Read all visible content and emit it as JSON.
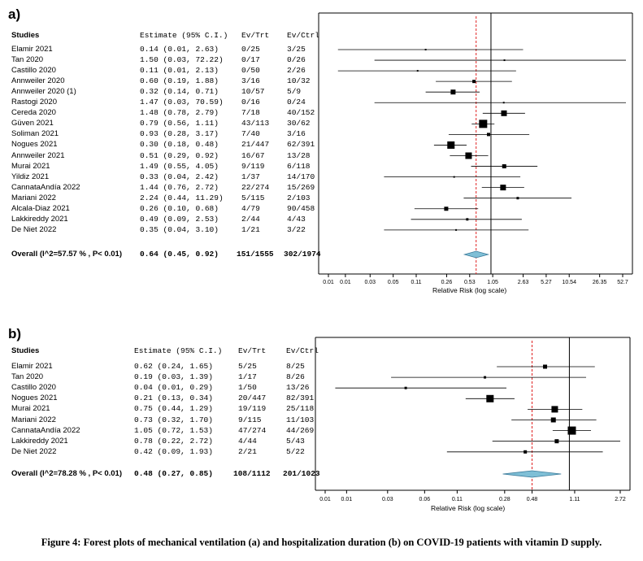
{
  "caption": "Figure 4: Forest plots of mechanical ventilation (a) and hospitalization duration (b) on COVID-19 patients with vitamin D supply.",
  "chart_data": [
    {
      "type": "forest",
      "panel_label": "a)",
      "headers": {
        "studies": "Studies",
        "estimate": "Estimate (95% C.I.)",
        "ev_trt": "Ev/Trt",
        "ev_ctrl": "Ev/Ctrl"
      },
      "xlabel": "Relative Risk (log scale)",
      "xlim": [
        0.01,
        52.7
      ],
      "ticks": [
        "0.01",
        "0.01",
        "0.03",
        "0.05",
        "0.11",
        "0.26",
        "0.53",
        "1.05",
        "2.63",
        "5.27",
        "10.54",
        "26.35",
        "52.7"
      ],
      "tick_values": [
        0.0075,
        0.0125,
        0.0263,
        0.0527,
        0.1054,
        0.2635,
        0.527,
        1.054,
        2.635,
        5.27,
        10.54,
        26.35,
        52.7
      ],
      "reference_line": 1,
      "overall_line": 0.64,
      "studies": [
        {
          "name": "Elamir 2021",
          "est": "0.14",
          "lo": "0.01",
          "hi": "2.63",
          "ev_trt": "0/25",
          "ev_ctrl": "3/25",
          "rr": 0.14,
          "l": 0.01,
          "u": 2.63,
          "w": 2
        },
        {
          "name": "Tan 2020",
          "est": "1.50",
          "lo": "0.03",
          "hi": "72.22",
          "ev_trt": "0/17",
          "ev_ctrl": "0/26",
          "rr": 1.5,
          "l": 0.03,
          "u": 72.22,
          "w": 2
        },
        {
          "name": "Castillo 2020",
          "est": "0.11",
          "lo": "0.01",
          "hi": "2.13",
          "ev_trt": "0/50",
          "ev_ctrl": "2/26",
          "rr": 0.11,
          "l": 0.01,
          "u": 2.13,
          "w": 2
        },
        {
          "name": "Annweiler 2020",
          "est": "0.60",
          "lo": "0.19",
          "hi": "1.88",
          "ev_trt": "3/16",
          "ev_ctrl": "10/32",
          "rr": 0.6,
          "l": 0.19,
          "u": 1.88,
          "w": 4
        },
        {
          "name": "Annweiler 2020 (1)",
          "est": "0.32",
          "lo": "0.14",
          "hi": "0.71",
          "ev_trt": "10/57",
          "ev_ctrl": "5/9",
          "rr": 0.32,
          "l": 0.14,
          "u": 0.71,
          "w": 6
        },
        {
          "name": "Rastogi 2020",
          "est": "1.47",
          "lo": "0.03",
          "hi": "70.59",
          "ev_trt": "0/16",
          "ev_ctrl": "0/24",
          "rr": 1.47,
          "l": 0.03,
          "u": 70.59,
          "w": 2
        },
        {
          "name": "Cereda 2020",
          "est": "1.48",
          "lo": "0.78",
          "hi": "2.79",
          "ev_trt": "7/18",
          "ev_ctrl": "40/152",
          "rr": 1.48,
          "l": 0.78,
          "u": 2.79,
          "w": 7
        },
        {
          "name": "Güven 2021",
          "est": "0.79",
          "lo": "0.56",
          "hi": "1.11",
          "ev_trt": "43/113",
          "ev_ctrl": "30/62",
          "rr": 0.79,
          "l": 0.56,
          "u": 1.11,
          "w": 10
        },
        {
          "name": "Soliman 2021",
          "est": "0.93",
          "lo": "0.28",
          "hi": "3.17",
          "ev_trt": "7/40",
          "ev_ctrl": "3/16",
          "rr": 0.93,
          "l": 0.28,
          "u": 3.17,
          "w": 4
        },
        {
          "name": "Nogues 2021",
          "est": "0.30",
          "lo": "0.18",
          "hi": "0.48",
          "ev_trt": "21/447",
          "ev_ctrl": "62/391",
          "rr": 0.3,
          "l": 0.18,
          "u": 0.48,
          "w": 9
        },
        {
          "name": "Annweiler 2021",
          "est": "0.51",
          "lo": "0.29",
          "hi": "0.92",
          "ev_trt": "16/67",
          "ev_ctrl": "13/28",
          "rr": 0.51,
          "l": 0.29,
          "u": 0.92,
          "w": 8
        },
        {
          "name": "Murai 2021",
          "est": "1.49",
          "lo": "0.55",
          "hi": "4.05",
          "ev_trt": "9/119",
          "ev_ctrl": "6/118",
          "rr": 1.49,
          "l": 0.55,
          "u": 4.05,
          "w": 5
        },
        {
          "name": "Yildiz 2021",
          "est": "0.33",
          "lo": "0.04",
          "hi": "2.42",
          "ev_trt": "1/37",
          "ev_ctrl": "14/170",
          "rr": 0.33,
          "l": 0.04,
          "u": 2.42,
          "w": 2
        },
        {
          "name": "CannataAndía 2022",
          "est": "1.44",
          "lo": "0.76",
          "hi": "2.72",
          "ev_trt": "22/274",
          "ev_ctrl": "15/269",
          "rr": 1.44,
          "l": 0.76,
          "u": 2.72,
          "w": 7
        },
        {
          "name": "Mariani 2022",
          "est": "2.24",
          "lo": "0.44",
          "hi": "11.29",
          "ev_trt": "5/115",
          "ev_ctrl": "2/103",
          "rr": 2.24,
          "l": 0.44,
          "u": 11.29,
          "w": 3
        },
        {
          "name": "Alcala-Diaz 2021",
          "est": "0.26",
          "lo": "0.10",
          "hi": "0.68",
          "ev_trt": "4/79",
          "ev_ctrl": "90/458",
          "rr": 0.26,
          "l": 0.1,
          "u": 0.68,
          "w": 5
        },
        {
          "name": "Lakkireddy 2021",
          "est": "0.49",
          "lo": "0.09",
          "hi": "2.53",
          "ev_trt": "2/44",
          "ev_ctrl": "4/43",
          "rr": 0.49,
          "l": 0.09,
          "u": 2.53,
          "w": 3
        },
        {
          "name": "De Niet 2022",
          "est": "0.35",
          "lo": "0.04",
          "hi": "3.10",
          "ev_trt": "1/21",
          "ev_ctrl": "3/22",
          "rr": 0.35,
          "l": 0.04,
          "u": 3.1,
          "w": 2
        }
      ],
      "overall": {
        "name": "Overall (I^2=57.57 % , P< 0.01)",
        "est": "0.64",
        "lo": "0.45",
        "hi": "0.92",
        "ev_trt": "151/1555",
        "ev_ctrl": "302/1974",
        "rr": 0.64,
        "l": 0.45,
        "u": 0.92
      }
    },
    {
      "type": "forest",
      "panel_label": "b)",
      "headers": {
        "studies": "Studies",
        "estimate": "Estimate (95% C.I.)",
        "ev_trt": "Ev/Trt",
        "ev_ctrl": "Ev/Ctrl"
      },
      "xlabel": "Relative Risk (log scale)",
      "xlim": [
        0.01,
        2.72
      ],
      "ticks": [
        "0.01",
        "0.01",
        "0.03",
        "0.06",
        "0.11",
        "0.28",
        "0.48",
        "1.11",
        "2.72"
      ],
      "tick_values": [
        0.0082,
        0.0125,
        0.028,
        0.058,
        0.11,
        0.28,
        0.48,
        1.11,
        2.72
      ],
      "reference_line": 1,
      "overall_line": 0.48,
      "studies": [
        {
          "name": "Elamir 2021",
          "est": "0.62",
          "lo": "0.24",
          "hi": "1.65",
          "ev_trt": "5/25",
          "ev_ctrl": "8/25",
          "rr": 0.62,
          "l": 0.24,
          "u": 1.65,
          "w": 5
        },
        {
          "name": "Tan 2020",
          "est": "0.19",
          "lo": "0.03",
          "hi": "1.39",
          "ev_trt": "1/17",
          "ev_ctrl": "8/26",
          "rr": 0.19,
          "l": 0.03,
          "u": 1.39,
          "w": 3
        },
        {
          "name": "Castillo 2020",
          "est": "0.04",
          "lo": "0.01",
          "hi": "0.29",
          "ev_trt": "1/50",
          "ev_ctrl": "13/26",
          "rr": 0.04,
          "l": 0.01,
          "u": 0.29,
          "w": 3
        },
        {
          "name": "Nogues 2021",
          "est": "0.21",
          "lo": "0.13",
          "hi": "0.34",
          "ev_trt": "20/447",
          "ev_ctrl": "82/391",
          "rr": 0.21,
          "l": 0.13,
          "u": 0.34,
          "w": 9
        },
        {
          "name": "Murai 2021",
          "est": "0.75",
          "lo": "0.44",
          "hi": "1.29",
          "ev_trt": "19/119",
          "ev_ctrl": "25/118",
          "rr": 0.75,
          "l": 0.44,
          "u": 1.29,
          "w": 8
        },
        {
          "name": "Mariani 2022",
          "est": "0.73",
          "lo": "0.32",
          "hi": "1.70",
          "ev_trt": "9/115",
          "ev_ctrl": "11/103",
          "rr": 0.73,
          "l": 0.32,
          "u": 1.7,
          "w": 6
        },
        {
          "name": "CannataAndía 2022",
          "est": "1.05",
          "lo": "0.72",
          "hi": "1.53",
          "ev_trt": "47/274",
          "ev_ctrl": "44/269",
          "rr": 1.05,
          "l": 0.72,
          "u": 1.53,
          "w": 10
        },
        {
          "name": "Lakkireddy 2021",
          "est": "0.78",
          "lo": "0.22",
          "hi": "2.72",
          "ev_trt": "4/44",
          "ev_ctrl": "5/43",
          "rr": 0.78,
          "l": 0.22,
          "u": 2.72,
          "w": 5
        },
        {
          "name": "De Niet 2022",
          "est": "0.42",
          "lo": "0.09",
          "hi": "1.93",
          "ev_trt": "2/21",
          "ev_ctrl": "5/22",
          "rr": 0.42,
          "l": 0.09,
          "u": 1.93,
          "w": 4
        }
      ],
      "overall": {
        "name": "Overall (I^2=78.28 % , P< 0.01)",
        "est": "0.48",
        "lo": "0.27",
        "hi": "0.85",
        "ev_trt": "108/1112",
        "ev_ctrl": "201/1023",
        "rr": 0.48,
        "l": 0.27,
        "u": 0.85
      }
    }
  ],
  "colors": {
    "diamond_fill": "#7fbfd6",
    "diamond_stroke": "#3a7a9a",
    "dashed_line": "#e02020",
    "axis": "#000000"
  }
}
